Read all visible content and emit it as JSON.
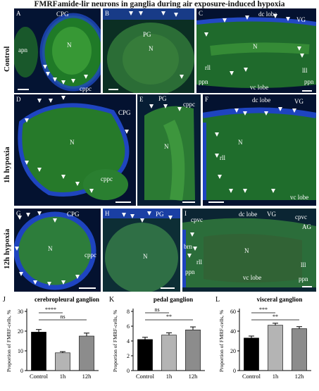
{
  "figure_title": "FMRFamide-lir neurons in ganglia during air exposure-induced hypoxia",
  "row_labels": [
    "Control",
    "1h hypoxia",
    "12h hypoxia"
  ],
  "panels": [
    {
      "letter": "A",
      "labels": [
        "CPG",
        "N",
        "apn",
        "cppc"
      ]
    },
    {
      "letter": "B",
      "labels": [
        "PG",
        "N"
      ]
    },
    {
      "letter": "C",
      "labels": [
        "dc lobe",
        "VG",
        "N",
        "rll",
        "lll",
        "ppn",
        "ppn",
        "vc lobe"
      ]
    },
    {
      "letter": "D",
      "labels": [
        "CPG",
        "N",
        "cppc"
      ]
    },
    {
      "letter": "E",
      "labels": [
        "PG",
        "cppc",
        "N"
      ]
    },
    {
      "letter": "F",
      "labels": [
        "dc lobe",
        "VG",
        "N",
        "rll",
        "vc lobe"
      ]
    },
    {
      "letter": "G",
      "labels": [
        "CPG",
        "N",
        "cppc"
      ]
    },
    {
      "letter": "H",
      "labels": [
        "PG",
        "N"
      ]
    },
    {
      "letter": "I",
      "labels": [
        "cpvc",
        "dc lobe",
        "VG",
        "cpvc",
        "AG",
        "brn",
        "N",
        "rll",
        "lll",
        "ppn",
        "vc lobe",
        "ppn"
      ]
    }
  ],
  "colors": {
    "neuropil_green": "#2f8f2a",
    "nuclei_blue": "#1a3fb0",
    "background": "#03112b",
    "bar_control": "#000000",
    "bar_1h": "#b4b4b4",
    "bar_12h": "#8c8c8c"
  },
  "chart_data": [
    {
      "letter": "J",
      "type": "bar",
      "title": "cerebropleural ganglion",
      "ylabel": "Proportion of FMRF-cells, %",
      "categories": [
        "Control",
        "1h",
        "12h"
      ],
      "values": [
        19.5,
        9.0,
        17.5
      ],
      "errors": [
        1.3,
        0.6,
        1.5
      ],
      "ylim": [
        0,
        30
      ],
      "yticks": [
        0,
        10,
        20,
        30
      ],
      "significance": [
        {
          "label": "****",
          "pair": [
            0,
            1
          ]
        },
        {
          "label": "ns",
          "pair": [
            0,
            2
          ]
        }
      ]
    },
    {
      "letter": "K",
      "type": "bar",
      "title": "pedal ganglion",
      "ylabel": "Proportion of FMRF-cells, %",
      "categories": [
        "Control",
        "1h",
        "12h"
      ],
      "values": [
        4.2,
        4.8,
        5.5
      ],
      "errors": [
        0.3,
        0.3,
        0.4
      ],
      "ylim": [
        0,
        8
      ],
      "yticks": [
        0,
        2,
        4,
        6,
        8
      ],
      "significance": [
        {
          "label": "ns",
          "pair": [
            0,
            1
          ]
        },
        {
          "label": "**",
          "pair": [
            0,
            2
          ]
        }
      ]
    },
    {
      "letter": "L",
      "type": "bar",
      "title": "visceral ganglion",
      "ylabel": "Proportion of FMRF-cells, %",
      "categories": [
        "Control",
        "1h",
        "12h"
      ],
      "values": [
        33.0,
        46.0,
        42.5
      ],
      "errors": [
        2.0,
        2.0,
        2.0
      ],
      "ylim": [
        0,
        60
      ],
      "yticks": [
        0,
        20,
        40,
        60
      ],
      "significance": [
        {
          "label": "***",
          "pair": [
            0,
            1
          ]
        },
        {
          "label": "**",
          "pair": [
            0,
            2
          ]
        }
      ]
    }
  ]
}
